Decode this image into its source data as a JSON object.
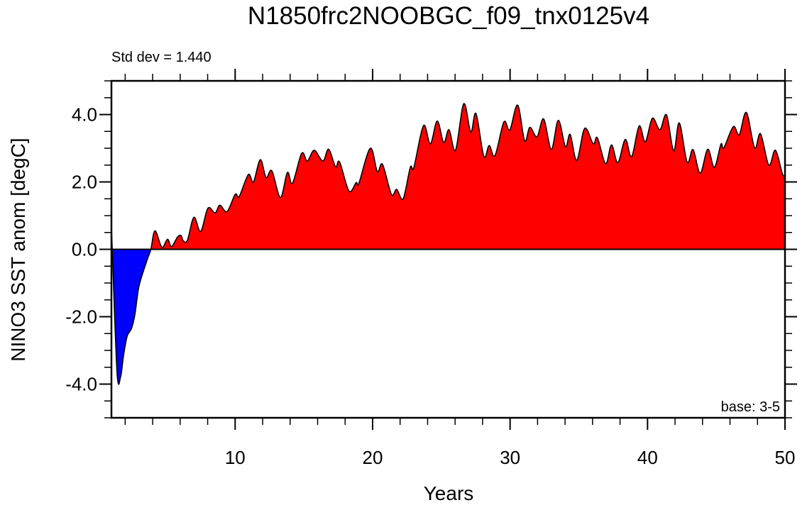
{
  "chart_data": {
    "type": "area",
    "title": "N1850frc2NOOBGC_f09_tnx0125v4",
    "left_annotation": "Std dev = 1.440",
    "right_annotation": "base: 3-5",
    "xlabel": "Years",
    "ylabel": "NINO3 SST anom [degC]",
    "xlim": [
      1,
      50
    ],
    "ylim": [
      -5,
      5
    ],
    "xticks": [
      10,
      20,
      30,
      40,
      50
    ],
    "xtick_labels": [
      "10",
      "20",
      "30",
      "40",
      "50"
    ],
    "yticks": [
      -4,
      -2,
      0,
      2,
      4
    ],
    "ytick_labels": [
      "-4.0",
      "-2.0",
      "0.0",
      "2.0",
      "4.0"
    ],
    "grid": false,
    "colors": {
      "positive": "#ff0000",
      "negative": "#0000ff",
      "line": "#000000"
    },
    "x": [
      1.0,
      1.06,
      1.41,
      1.67,
      1.88,
      2.15,
      2.45,
      2.7,
      2.96,
      3.22,
      3.65,
      3.87,
      4.17,
      4.67,
      5.08,
      5.37,
      5.8,
      6.06,
      6.23,
      6.53,
      7.0,
      7.49,
      8.02,
      8.54,
      8.89,
      9.41,
      10.0,
      10.3,
      10.96,
      11.33,
      11.83,
      12.25,
      12.67,
      13.29,
      13.8,
      14.17,
      14.84,
      15.25,
      15.75,
      16.38,
      16.8,
      17.3,
      17.6,
      18.28,
      18.8,
      19.0,
      19.83,
      20.34,
      20.72,
      21.37,
      21.75,
      22.22,
      22.74,
      23.0,
      23.7,
      24.2,
      24.7,
      25.17,
      25.56,
      26.03,
      26.63,
      27.14,
      27.52,
      28.09,
      28.48,
      28.9,
      29.55,
      29.98,
      30.55,
      31.06,
      31.44,
      31.96,
      32.44,
      33.0,
      33.51,
      34.03,
      34.37,
      34.85,
      35.43,
      36.05,
      36.35,
      36.95,
      37.38,
      37.84,
      38.38,
      38.84,
      39.39,
      39.84,
      40.35,
      40.9,
      41.38,
      41.9,
      42.31,
      42.88,
      43.31,
      43.83,
      44.38,
      44.86,
      45.34,
      45.55,
      46.24,
      46.67,
      47.19,
      47.79,
      48.22,
      48.82,
      49.3,
      49.81,
      50.0
    ],
    "values": [
      0.62,
      0.0,
      -3.67,
      -3.78,
      -3.15,
      -2.57,
      -2.36,
      -1.95,
      -1.18,
      -0.78,
      -0.25,
      0.0,
      0.55,
      0.06,
      0.3,
      0.08,
      0.36,
      0.41,
      0.25,
      0.27,
      0.95,
      0.53,
      1.22,
      1.08,
      1.31,
      1.12,
      1.63,
      1.57,
      2.22,
      2.0,
      2.66,
      2.13,
      2.33,
      1.54,
      2.28,
      1.96,
      2.85,
      2.62,
      2.94,
      2.62,
      2.97,
      2.45,
      2.59,
      1.73,
      1.98,
      1.96,
      3.0,
      2.31,
      2.52,
      1.63,
      1.78,
      1.5,
      2.43,
      2.43,
      3.67,
      3.13,
      3.81,
      3.17,
      3.55,
      2.94,
      4.32,
      3.48,
      4.03,
      2.76,
      3.08,
      2.78,
      3.78,
      3.54,
      4.28,
      3.22,
      3.62,
      3.34,
      3.87,
      2.97,
      3.83,
      3.04,
      3.41,
      2.64,
      3.59,
      3.13,
      3.31,
      2.54,
      3.1,
      2.57,
      3.26,
      2.75,
      3.66,
      3.19,
      3.89,
      3.55,
      3.99,
      2.92,
      3.75,
      2.59,
      2.96,
      2.26,
      2.97,
      2.43,
      3.12,
      3.01,
      3.64,
      3.4,
      4.06,
      3.01,
      3.43,
      2.5,
      2.94,
      2.24,
      2.19
    ]
  }
}
